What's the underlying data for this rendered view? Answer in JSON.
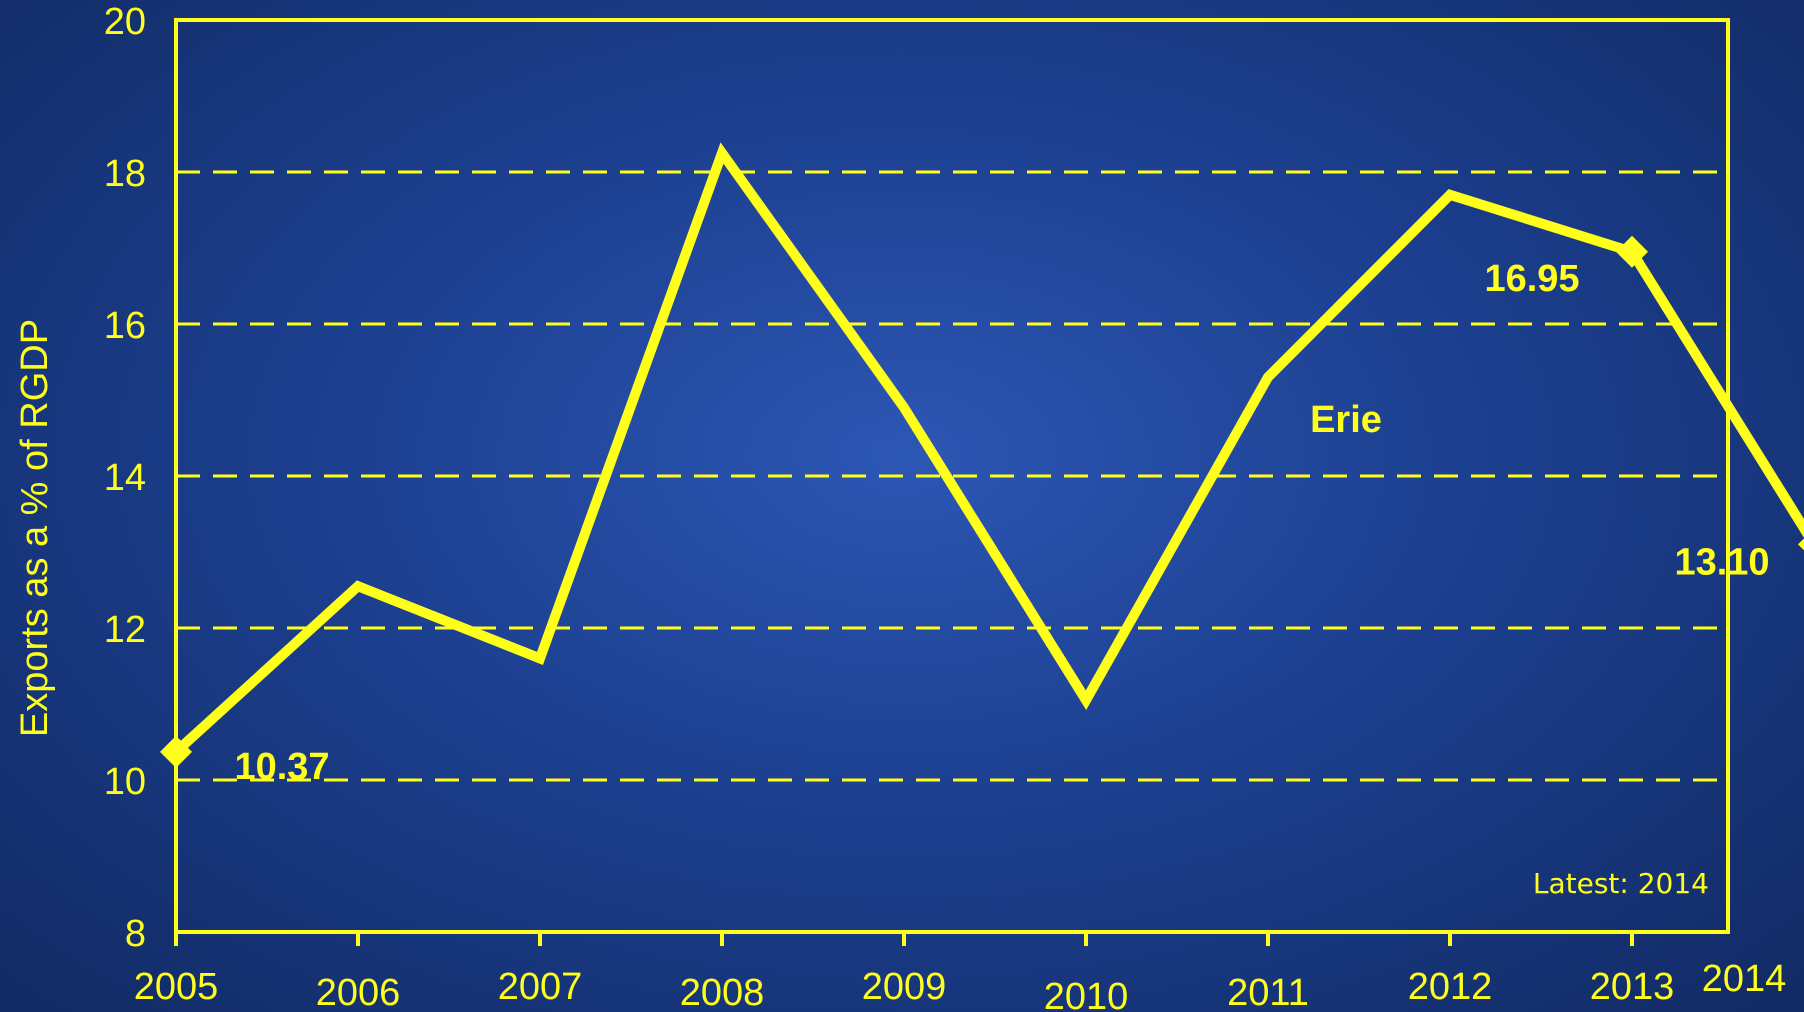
{
  "chart_data": {
    "type": "line",
    "ylabel": "Exports as a % of RGDP",
    "xlabel": "",
    "x": [
      "2005",
      "2006",
      "2007",
      "2008",
      "2009",
      "2010",
      "2011",
      "2012",
      "2013",
      "2014"
    ],
    "series": [
      {
        "name": "Erie",
        "values": [
          10.37,
          12.55,
          11.6,
          18.25,
          14.9,
          11.05,
          15.3,
          17.7,
          16.95,
          13.1
        ]
      }
    ],
    "ylim": [
      8,
      20
    ],
    "yticks": [
      8,
      10,
      12,
      14,
      16,
      18,
      20
    ],
    "grid": "dashed horizontal",
    "data_labels": [
      {
        "index": 0,
        "text": "10.37"
      },
      {
        "index": 8,
        "text": "16.95"
      },
      {
        "index": 9,
        "text": "13.10"
      }
    ],
    "markers": [
      0,
      8,
      9
    ],
    "note": "Latest: 2014",
    "colors": {
      "line": "#ffff1a",
      "background": "#1f4595"
    }
  }
}
